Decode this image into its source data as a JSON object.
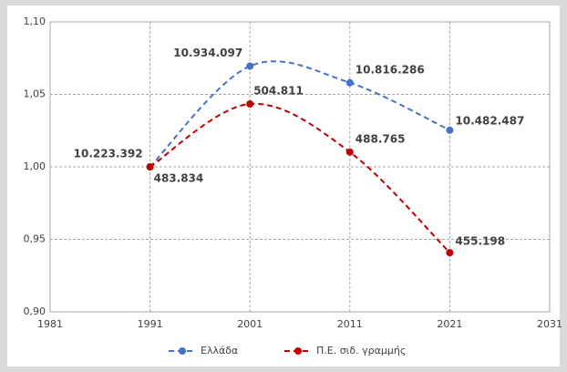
{
  "chart_data": {
    "type": "line",
    "x": [
      1991,
      2001,
      2011,
      2021
    ],
    "series": [
      {
        "name": "Ελλάδα",
        "color": "#4472c4",
        "values": [
          1.0,
          1.0695,
          1.058,
          1.0253
        ],
        "point_labels": [
          "10.223.392",
          "10.934.097",
          "10.816.286",
          "10.482.487"
        ]
      },
      {
        "name": "Π.Ε. σιδ. γραμμής",
        "color": "#c00000",
        "values": [
          1.0,
          1.0434,
          1.0102,
          0.9408
        ],
        "point_labels": [
          "483.834",
          "504.811",
          "488.765",
          "455.198"
        ]
      }
    ],
    "xlim": [
      1981,
      2031
    ],
    "xticks": [
      1981,
      1991,
      2001,
      2011,
      2021,
      2031
    ],
    "ylim": [
      0.9,
      1.1
    ],
    "yticks": [
      {
        "value": 0.9,
        "label": "0,90"
      },
      {
        "value": 0.95,
        "label": "0,95"
      },
      {
        "value": 1.0,
        "label": "1,00"
      },
      {
        "value": 1.05,
        "label": "1,05"
      },
      {
        "value": 1.1,
        "label": "1,10"
      }
    ],
    "grid": true,
    "smooth": true,
    "dashed": true,
    "legend": "bottom"
  }
}
